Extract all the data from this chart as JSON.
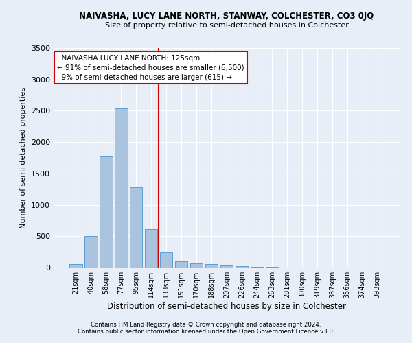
{
  "title": "NAIVASHA, LUCY LANE NORTH, STANWAY, COLCHESTER, CO3 0JQ",
  "subtitle": "Size of property relative to semi-detached houses in Colchester",
  "xlabel": "Distribution of semi-detached houses by size in Colchester",
  "ylabel": "Number of semi-detached properties",
  "footer1": "Contains HM Land Registry data © Crown copyright and database right 2024.",
  "footer2": "Contains public sector information licensed under the Open Government Licence v3.0.",
  "categories": [
    "21sqm",
    "40sqm",
    "58sqm",
    "77sqm",
    "95sqm",
    "114sqm",
    "133sqm",
    "151sqm",
    "170sqm",
    "188sqm",
    "207sqm",
    "226sqm",
    "244sqm",
    "263sqm",
    "281sqm",
    "300sqm",
    "319sqm",
    "337sqm",
    "356sqm",
    "374sqm",
    "393sqm"
  ],
  "values": [
    60,
    505,
    1775,
    2535,
    1280,
    615,
    240,
    100,
    65,
    50,
    30,
    20,
    15,
    10,
    5,
    5,
    0,
    0,
    0,
    0,
    0
  ],
  "bar_color": "#aac4e0",
  "bar_edge_color": "#5a9fd4",
  "marker_line_color": "#cc0000",
  "annotation_title": "NAIVASHA LUCY LANE NORTH: 125sqm",
  "annotation_line1": "← 91% of semi-detached houses are smaller (6,500)",
  "annotation_line2": "9% of semi-detached houses are larger (615) →",
  "annotation_box_color": "#cc0000",
  "ylim": [
    0,
    3500
  ],
  "yticks": [
    0,
    500,
    1000,
    1500,
    2000,
    2500,
    3000,
    3500
  ],
  "background_color": "#e8eef7",
  "plot_bg_color": "#e8eef7",
  "grid_color": "#ffffff"
}
